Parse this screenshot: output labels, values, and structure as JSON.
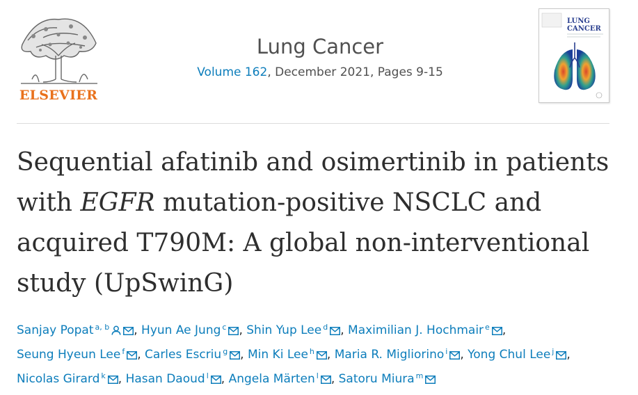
{
  "publisher": {
    "name": "ELSEVIER"
  },
  "journal": {
    "name": "Lung Cancer",
    "volume_link": "Volume 162",
    "issue_rest": ", December 2021, Pages 9-15",
    "cover_title_line1": "LUNG",
    "cover_title_line2": "CANCER"
  },
  "article": {
    "title_part1": "Sequential afatinib and osimertinib in patients with ",
    "title_italic": "EGFR",
    "title_part2": " mutation-positive NSCLC and acquired T790M: A global non-interventional study (UpSwinG)"
  },
  "authors": [
    {
      "name": "Sanjay Popat",
      "aff": "a, b",
      "person_icon": true
    },
    {
      "name": "Hyun Ae Jung",
      "aff": "c"
    },
    {
      "name": "Shin Yup Lee",
      "aff": "d"
    },
    {
      "name": "Maximilian J. Hochmair",
      "aff": "e"
    },
    {
      "name": "Seung Hyeun Lee",
      "aff": "f"
    },
    {
      "name": "Carles Escriu",
      "aff": "g"
    },
    {
      "name": "Min Ki Lee",
      "aff": "h"
    },
    {
      "name": "Maria R. Migliorino",
      "aff": "i"
    },
    {
      "name": "Yong Chul Lee",
      "aff": "j"
    },
    {
      "name": "Nicolas Girard",
      "aff": "k"
    },
    {
      "name": "Hasan Daoud",
      "aff": "l"
    },
    {
      "name": "Angela Märten",
      "aff": "l"
    },
    {
      "name": "Satoru Miura",
      "aff": "m"
    }
  ],
  "separator": ",",
  "colors": {
    "link": "#0c7dbb",
    "brand": "#e9711c",
    "text": "#2e2e2e"
  }
}
